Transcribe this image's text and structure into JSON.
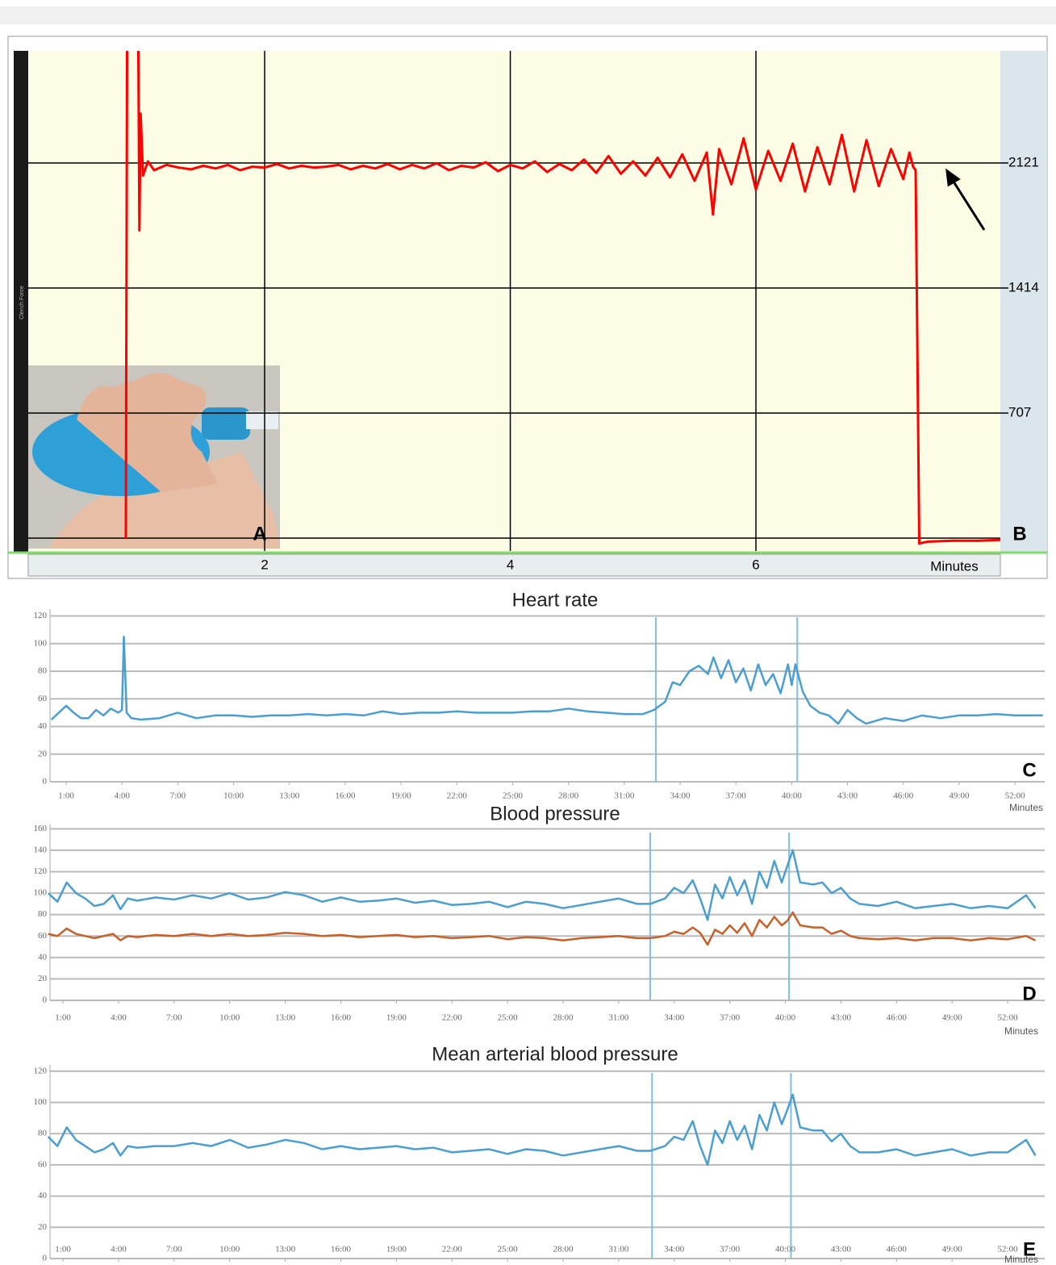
{
  "chart_data": [
    {
      "type": "line",
      "panel_label": "B",
      "x_label": "Minutes",
      "y_label": "Clench Force",
      "grid": true,
      "xlim": [
        0.075,
        7.99
      ],
      "ylim": [
        -73,
        2755
      ],
      "xticks": [
        2,
        4,
        6
      ],
      "yticks": [
        707,
        1414,
        2121
      ],
      "x": [
        0.87,
        0.88,
        0.97,
        0.98,
        0.99,
        1.01,
        1.05,
        1.1,
        1.2,
        1.3,
        1.4,
        1.5,
        1.6,
        1.7,
        1.8,
        1.9,
        2.0,
        2.1,
        2.2,
        2.3,
        2.4,
        2.5,
        2.6,
        2.7,
        2.8,
        2.9,
        3.0,
        3.1,
        3.2,
        3.3,
        3.4,
        3.5,
        3.6,
        3.7,
        3.8,
        3.9,
        4.0,
        4.1,
        4.2,
        4.3,
        4.4,
        4.5,
        4.6,
        4.7,
        4.8,
        4.9,
        5.0,
        5.1,
        5.2,
        5.3,
        5.4,
        5.5,
        5.6,
        5.65,
        5.7,
        5.8,
        5.9,
        6.0,
        6.1,
        6.2,
        6.3,
        6.4,
        6.5,
        6.6,
        6.7,
        6.8,
        6.9,
        7.0,
        7.1,
        7.2,
        7.25,
        7.28,
        7.3,
        7.33,
        7.4,
        7.6,
        7.8,
        7.99
      ],
      "series": [
        {
          "color": "#ff0000",
          "values": [
            0,
            2900,
            2900,
            1740,
            2400,
            2050,
            2130,
            2080,
            2110,
            2095,
            2085,
            2105,
            2090,
            2110,
            2080,
            2100,
            2095,
            2115,
            2090,
            2105,
            2095,
            2100,
            2110,
            2085,
            2105,
            2090,
            2115,
            2085,
            2110,
            2090,
            2120,
            2080,
            2105,
            2095,
            2125,
            2075,
            2110,
            2090,
            2130,
            2070,
            2115,
            2080,
            2140,
            2065,
            2160,
            2060,
            2130,
            2050,
            2150,
            2040,
            2170,
            2020,
            2180,
            1830,
            2200,
            2000,
            2260,
            1970,
            2190,
            2020,
            2230,
            1960,
            2210,
            2000,
            2280,
            1960,
            2250,
            1990,
            2200,
            2030,
            2180,
            2100,
            2080,
            -30,
            -20,
            -15,
            -15,
            -10
          ]
        }
      ]
    },
    {
      "type": "line",
      "title": "Heart rate",
      "panel_label": "C",
      "x_label": "Minutes",
      "grid": true,
      "xlim": [
        0.13,
        53.6
      ],
      "ylim": [
        0,
        125
      ],
      "yticks": [
        0,
        20,
        40,
        60,
        80,
        100,
        120
      ],
      "xticks": [
        {
          "value": 1,
          "label": "1:00"
        },
        {
          "value": 4,
          "label": "4:00"
        },
        {
          "value": 7,
          "label": "7:00"
        },
        {
          "value": 10,
          "label": "10:00"
        },
        {
          "value": 13,
          "label": "13:00"
        },
        {
          "value": 16,
          "label": "16:00"
        },
        {
          "value": 19,
          "label": "19:00"
        },
        {
          "value": 22,
          "label": "22:00"
        },
        {
          "value": 25,
          "label": "25:00"
        },
        {
          "value": 28,
          "label": "28:00"
        },
        {
          "value": 31,
          "label": "31:00"
        },
        {
          "value": 34,
          "label": "34:00"
        },
        {
          "value": 37,
          "label": "37:00"
        },
        {
          "value": 40,
          "label": "40:00"
        },
        {
          "value": 43,
          "label": "43:00"
        },
        {
          "value": 46,
          "label": "46:00"
        },
        {
          "value": 49,
          "label": "49:00"
        },
        {
          "value": 52,
          "label": "52:00"
        }
      ],
      "markers": [
        32.7,
        40.3
      ],
      "x": [
        0.2,
        0.6,
        1.0,
        1.4,
        1.8,
        2.2,
        2.6,
        3.0,
        3.4,
        3.8,
        4.0,
        4.1,
        4.25,
        4.5,
        5,
        6,
        7,
        8,
        9,
        10,
        11,
        12,
        13,
        14,
        15,
        16,
        17,
        18,
        19,
        20,
        21,
        22,
        23,
        24,
        25,
        26,
        27,
        28,
        29,
        30,
        31,
        32,
        32.6,
        33.2,
        33.6,
        34,
        34.5,
        35,
        35.5,
        35.8,
        36.2,
        36.6,
        37,
        37.4,
        37.8,
        38.2,
        38.6,
        39,
        39.4,
        39.8,
        40,
        40.2,
        40.6,
        41,
        41.5,
        42,
        42.5,
        43,
        43.5,
        44,
        45,
        46,
        47,
        48,
        49,
        50,
        51,
        52,
        53,
        53.5
      ],
      "series": [
        {
          "color": "#4a9ed0",
          "values": [
            45,
            50,
            55,
            50,
            46,
            46,
            52,
            48,
            53,
            50,
            52,
            105,
            50,
            46,
            45,
            46,
            50,
            46,
            48,
            48,
            47,
            48,
            48,
            49,
            48,
            49,
            48,
            51,
            49,
            50,
            50,
            51,
            50,
            50,
            50,
            51,
            51,
            53,
            51,
            50,
            49,
            49,
            52,
            58,
            72,
            70,
            80,
            84,
            78,
            90,
            75,
            88,
            72,
            82,
            66,
            85,
            70,
            78,
            64,
            85,
            70,
            85,
            65,
            55,
            50,
            48,
            42,
            52,
            46,
            42,
            46,
            44,
            48,
            46,
            48,
            48,
            49,
            48,
            48,
            48
          ]
        }
      ]
    },
    {
      "type": "line",
      "title": "Blood pressure",
      "panel_label": "D",
      "x_label": "Minutes",
      "grid": true,
      "xlim": [
        0.3,
        54
      ],
      "ylim": [
        0,
        164
      ],
      "yticks": [
        0,
        20,
        40,
        60,
        80,
        100,
        120,
        140,
        160
      ],
      "xticks": [
        {
          "value": 1,
          "label": "1:00"
        },
        {
          "value": 4,
          "label": "4:00"
        },
        {
          "value": 7,
          "label": "7:00"
        },
        {
          "value": 10,
          "label": "10:00"
        },
        {
          "value": 13,
          "label": "13:00"
        },
        {
          "value": 16,
          "label": "16:00"
        },
        {
          "value": 19,
          "label": "19:00"
        },
        {
          "value": 22,
          "label": "22:00"
        },
        {
          "value": 25,
          "label": "25:00"
        },
        {
          "value": 28,
          "label": "28:00"
        },
        {
          "value": 31,
          "label": "31:00"
        },
        {
          "value": 34,
          "label": "34:00"
        },
        {
          "value": 37,
          "label": "37:00"
        },
        {
          "value": 40,
          "label": "40:00"
        },
        {
          "value": 43,
          "label": "43:00"
        },
        {
          "value": 46,
          "label": "46:00"
        },
        {
          "value": 49,
          "label": "49:00"
        },
        {
          "value": 52,
          "label": "52:00"
        }
      ],
      "markers": [
        32.7,
        40.2
      ],
      "x": [
        0.2,
        0.7,
        1.2,
        1.7,
        2.2,
        2.7,
        3.2,
        3.7,
        4.1,
        4.5,
        5,
        6,
        7,
        8,
        9,
        10,
        11,
        12,
        13,
        14,
        15,
        16,
        17,
        18,
        19,
        20,
        21,
        22,
        23,
        24,
        25,
        26,
        27,
        28,
        29,
        30,
        31,
        32,
        32.7,
        33.5,
        34,
        34.5,
        35,
        35.4,
        35.8,
        36.2,
        36.6,
        37,
        37.4,
        37.8,
        38.2,
        38.6,
        39,
        39.4,
        39.8,
        40.1,
        40.4,
        40.8,
        41.5,
        42,
        42.5,
        43,
        43.5,
        44,
        45,
        46,
        47,
        48,
        49,
        50,
        51,
        52,
        53,
        53.5
      ],
      "series": [
        {
          "color": "#4a9ed0",
          "values": [
            100,
            92,
            110,
            100,
            95,
            88,
            90,
            98,
            85,
            95,
            93,
            96,
            94,
            98,
            95,
            100,
            94,
            96,
            101,
            98,
            92,
            96,
            92,
            93,
            95,
            91,
            93,
            89,
            90,
            92,
            87,
            92,
            90,
            86,
            89,
            92,
            95,
            90,
            90,
            95,
            105,
            100,
            112,
            95,
            75,
            108,
            95,
            115,
            98,
            112,
            90,
            120,
            105,
            130,
            110,
            125,
            140,
            110,
            108,
            110,
            100,
            105,
            95,
            90,
            88,
            92,
            86,
            88,
            90,
            86,
            88,
            86,
            98,
            86
          ]
        },
        {
          "color": "#c8602a",
          "values": [
            62,
            60,
            67,
            62,
            60,
            58,
            60,
            62,
            56,
            60,
            59,
            61,
            60,
            62,
            60,
            62,
            60,
            61,
            63,
            62,
            60,
            61,
            59,
            60,
            61,
            59,
            60,
            58,
            59,
            60,
            57,
            59,
            58,
            56,
            58,
            59,
            60,
            58,
            58,
            60,
            64,
            62,
            68,
            63,
            52,
            66,
            62,
            70,
            63,
            72,
            60,
            75,
            68,
            78,
            70,
            74,
            82,
            70,
            68,
            68,
            62,
            65,
            60,
            58,
            57,
            58,
            56,
            58,
            58,
            56,
            58,
            57,
            60,
            56
          ]
        }
      ]
    },
    {
      "type": "line",
      "title": "Mean arterial blood pressure",
      "panel_label": "E",
      "x_label": "Minutes",
      "grid": true,
      "xlim": [
        0.3,
        54
      ],
      "ylim": [
        0,
        124
      ],
      "yticks": [
        0,
        20,
        40,
        60,
        80,
        100,
        120
      ],
      "xticks": [
        {
          "value": 1,
          "label": "1:00"
        },
        {
          "value": 4,
          "label": "4:00"
        },
        {
          "value": 7,
          "label": "7:00"
        },
        {
          "value": 10,
          "label": "10:00"
        },
        {
          "value": 13,
          "label": "13:00"
        },
        {
          "value": 16,
          "label": "16:00"
        },
        {
          "value": 19,
          "label": "19:00"
        },
        {
          "value": 22,
          "label": "22:00"
        },
        {
          "value": 25,
          "label": "25:00"
        },
        {
          "value": 28,
          "label": "28:00"
        },
        {
          "value": 31,
          "label": "31:00"
        },
        {
          "value": 34,
          "label": "34:00"
        },
        {
          "value": 37,
          "label": "37:00"
        },
        {
          "value": 40,
          "label": "40:00"
        },
        {
          "value": 43,
          "label": "43:00"
        },
        {
          "value": 46,
          "label": "46:00"
        },
        {
          "value": 49,
          "label": "49:00"
        },
        {
          "value": 52,
          "label": "52:00"
        }
      ],
      "markers": [
        32.8,
        40.3
      ],
      "x": [
        0.2,
        0.7,
        1.2,
        1.7,
        2.2,
        2.7,
        3.2,
        3.7,
        4.1,
        4.5,
        5,
        6,
        7,
        8,
        9,
        10,
        11,
        12,
        13,
        14,
        15,
        16,
        17,
        18,
        19,
        20,
        21,
        22,
        23,
        24,
        25,
        26,
        27,
        28,
        29,
        30,
        31,
        32,
        32.7,
        33.5,
        34,
        34.5,
        35,
        35.4,
        35.8,
        36.2,
        36.6,
        37,
        37.4,
        37.8,
        38.2,
        38.6,
        39,
        39.4,
        39.8,
        40.1,
        40.4,
        40.8,
        41.5,
        42,
        42.5,
        43,
        43.5,
        44,
        45,
        46,
        47,
        48,
        49,
        50,
        51,
        52,
        53,
        53.5
      ],
      "series": [
        {
          "color": "#4a9ed0",
          "values": [
            78,
            72,
            84,
            76,
            72,
            68,
            70,
            74,
            66,
            72,
            71,
            72,
            72,
            74,
            72,
            76,
            71,
            73,
            76,
            74,
            70,
            72,
            70,
            71,
            72,
            70,
            71,
            68,
            69,
            70,
            67,
            70,
            69,
            66,
            68,
            70,
            72,
            69,
            69,
            72,
            78,
            76,
            88,
            72,
            60,
            82,
            74,
            88,
            76,
            85,
            70,
            92,
            82,
            100,
            86,
            95,
            105,
            84,
            82,
            82,
            75,
            80,
            72,
            68,
            68,
            70,
            66,
            68,
            70,
            66,
            68,
            68,
            76,
            66
          ]
        }
      ]
    }
  ]
}
